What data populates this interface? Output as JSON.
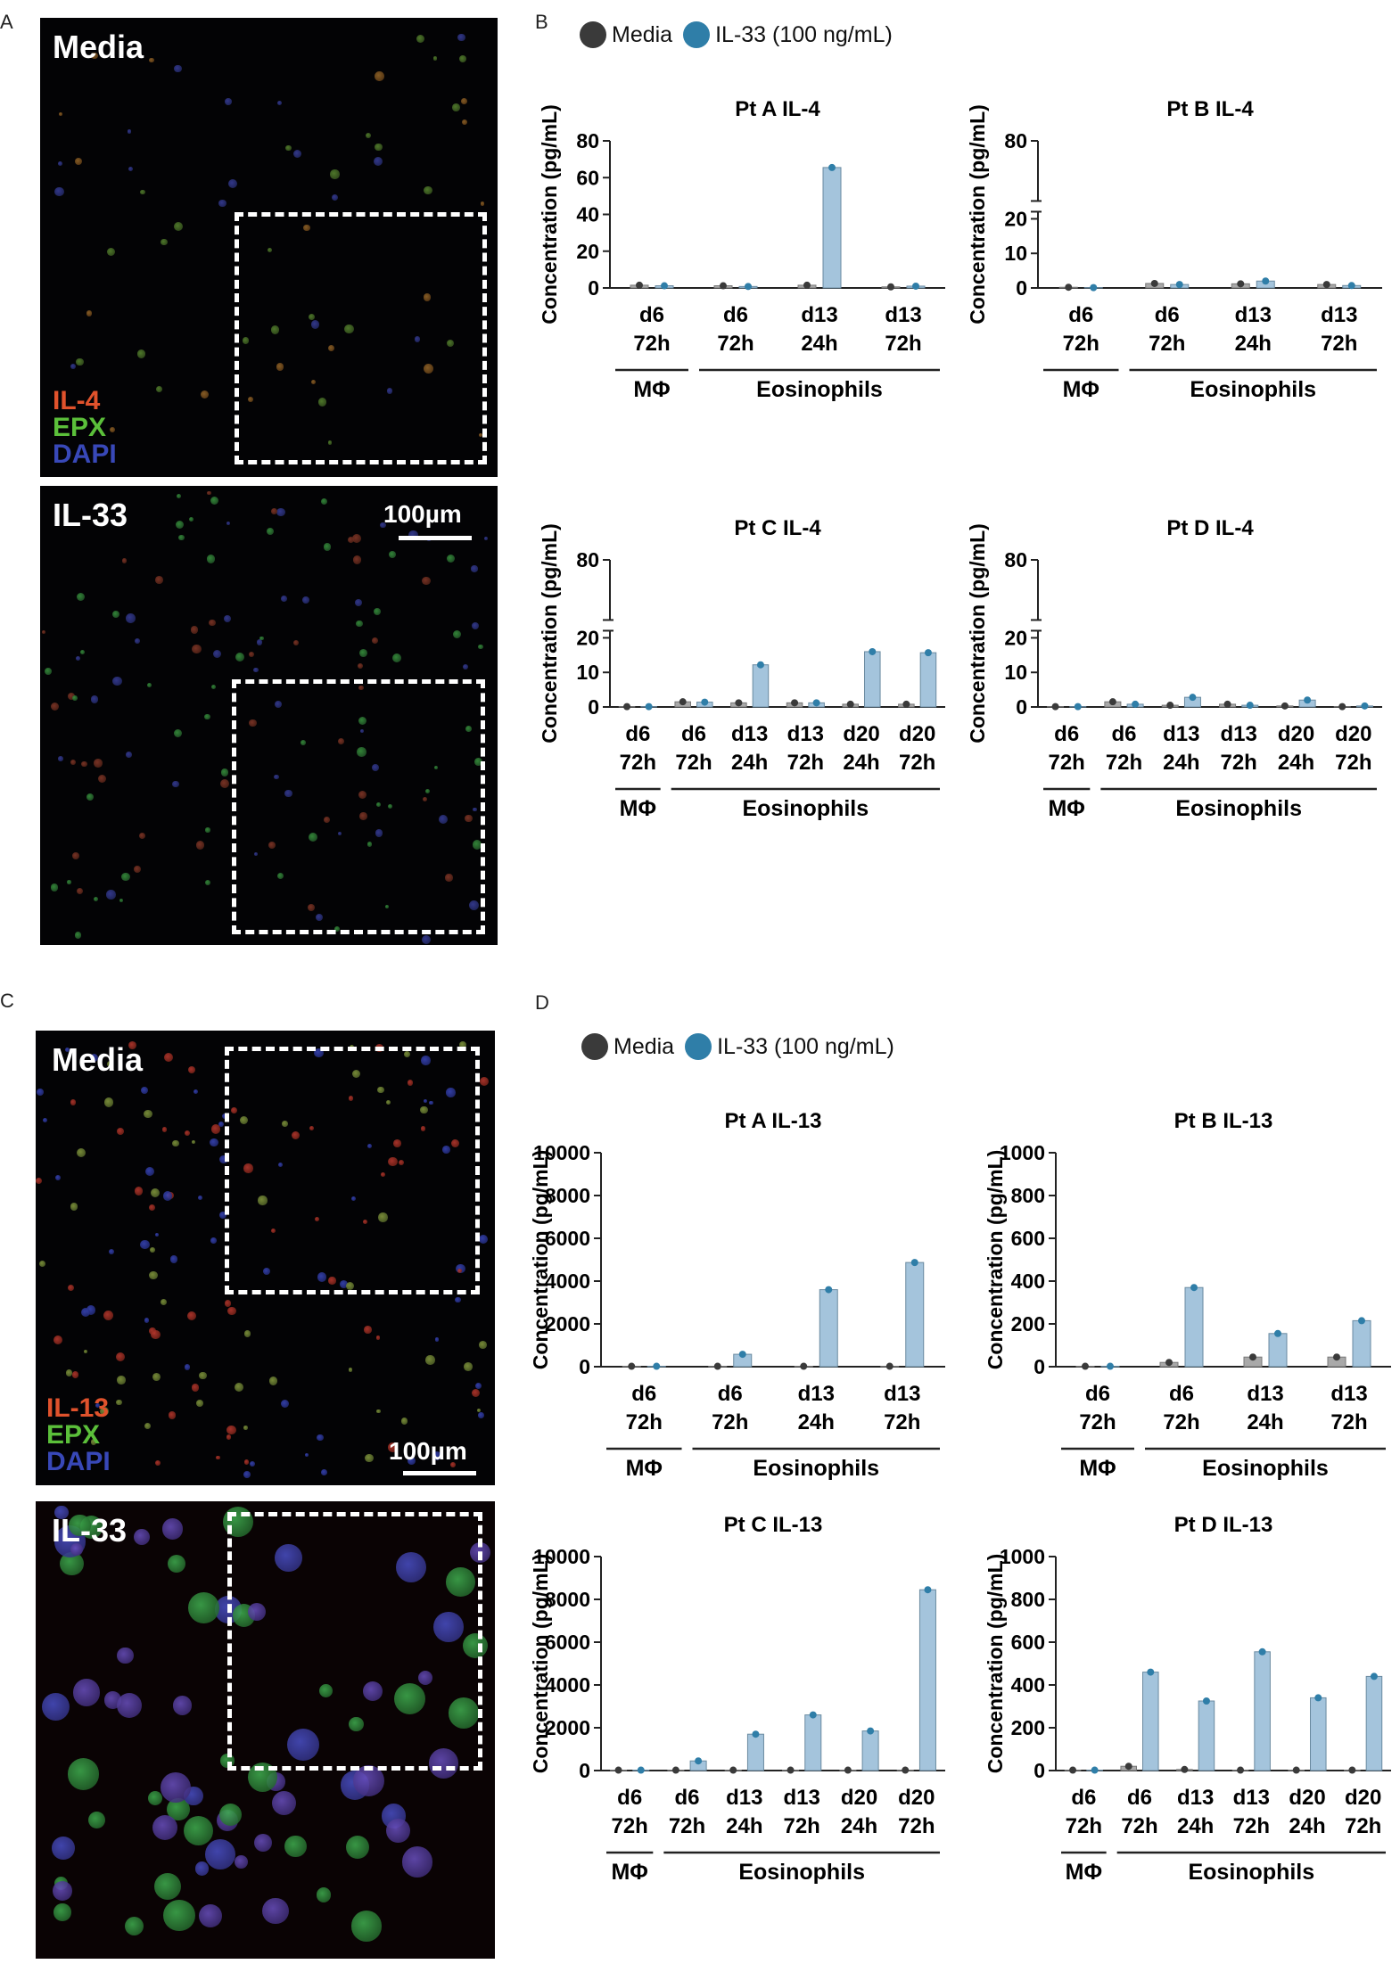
{
  "panels": {
    "A": "A",
    "B": "B",
    "C": "C",
    "D": "D"
  },
  "panel_a": {
    "top_label": "Media",
    "bottom_label": "IL-33",
    "stains": [
      {
        "text": "IL-4",
        "color": "#e0522c"
      },
      {
        "text": "EPX",
        "color": "#5bbf3a"
      },
      {
        "text": "DAPI",
        "color": "#3848b8"
      }
    ],
    "scale": "100µm"
  },
  "panel_c": {
    "top_label": "Media",
    "bottom_label": "IL-33",
    "stains": [
      {
        "text": "IL-13",
        "color": "#e0522c"
      },
      {
        "text": "EPX",
        "color": "#5bbf3a"
      },
      {
        "text": "DAPI",
        "color": "#3848b8"
      }
    ],
    "scale": "100µm"
  },
  "legend": {
    "items": [
      {
        "label": "Media",
        "color": "#3a3a3a"
      },
      {
        "label": "IL-33 (100 ng/mL)",
        "color": "#2f7ea8"
      }
    ]
  },
  "colors": {
    "media_bar": "#a9a9a9",
    "media_dot": "#3a3a3a",
    "il33_bar": "#a4c4dc",
    "il33_dot": "#2f7ea8"
  },
  "chart_data": [
    {
      "id": "ptA_il4",
      "type": "bar",
      "title": "Pt A IL-4",
      "ylabel": "Concentration (pg/mL)",
      "yticks": [
        0,
        20,
        40,
        60,
        80
      ],
      "ylim": [
        0,
        80
      ],
      "axis_break": false,
      "categories": [
        [
          "d6",
          "72h"
        ],
        [
          "d6",
          "72h"
        ],
        [
          "d13",
          "24h"
        ],
        [
          "d13",
          "72h"
        ]
      ],
      "groups": [
        {
          "label": "MΦ",
          "span": [
            0,
            0
          ]
        },
        {
          "label": "Eosinophils",
          "span": [
            1,
            3
          ]
        }
      ],
      "series": [
        {
          "name": "Media",
          "values": [
            1.5,
            1.2,
            1.5,
            0.6
          ]
        },
        {
          "name": "IL-33 (100 ng/mL)",
          "values": [
            1.2,
            0.8,
            65.5,
            1.0
          ]
        }
      ]
    },
    {
      "id": "ptB_il4",
      "type": "bar",
      "title": "Pt B IL-4",
      "ylabel": "Concentration (pg/mL)",
      "yticks": [
        0,
        10,
        20,
        80
      ],
      "ylim": [
        0,
        80
      ],
      "axis_break": true,
      "categories": [
        [
          "d6",
          "72h"
        ],
        [
          "d6",
          "72h"
        ],
        [
          "d13",
          "24h"
        ],
        [
          "d13",
          "72h"
        ]
      ],
      "groups": [
        {
          "label": "MΦ",
          "span": [
            0,
            0
          ]
        },
        {
          "label": "Eosinophils",
          "span": [
            1,
            3
          ]
        }
      ],
      "series": [
        {
          "name": "Media",
          "values": [
            0.2,
            1.3,
            1.2,
            1.0
          ]
        },
        {
          "name": "IL-33 (100 ng/mL)",
          "values": [
            0.1,
            1.0,
            2.0,
            0.7
          ]
        }
      ]
    },
    {
      "id": "ptC_il4",
      "type": "bar",
      "title": "Pt C IL-4",
      "ylabel": "Concentration (pg/mL)",
      "yticks": [
        0,
        10,
        20,
        80
      ],
      "ylim": [
        0,
        80
      ],
      "axis_break": true,
      "categories": [
        [
          "d6",
          "72h"
        ],
        [
          "d6",
          "72h"
        ],
        [
          "d13",
          "24h"
        ],
        [
          "d13",
          "72h"
        ],
        [
          "d20",
          "24h"
        ],
        [
          "d20",
          "72h"
        ]
      ],
      "groups": [
        {
          "label": "MΦ",
          "span": [
            0,
            0
          ]
        },
        {
          "label": "Eosinophils",
          "span": [
            1,
            5
          ]
        }
      ],
      "series": [
        {
          "name": "Media",
          "values": [
            0.1,
            1.5,
            1.2,
            1.2,
            0.8,
            0.8
          ]
        },
        {
          "name": "IL-33 (100 ng/mL)",
          "values": [
            0.1,
            1.4,
            12.2,
            1.2,
            16.0,
            15.7
          ]
        }
      ]
    },
    {
      "id": "ptD_il4",
      "type": "bar",
      "title": "Pt D IL-4",
      "ylabel": "Concentration (pg/mL)",
      "yticks": [
        0,
        10,
        20,
        80
      ],
      "ylim": [
        0,
        80
      ],
      "axis_break": true,
      "categories": [
        [
          "d6",
          "72h"
        ],
        [
          "d6",
          "72h"
        ],
        [
          "d13",
          "24h"
        ],
        [
          "d13",
          "72h"
        ],
        [
          "d20",
          "24h"
        ],
        [
          "d20",
          "72h"
        ]
      ],
      "groups": [
        {
          "label": "MΦ",
          "span": [
            0,
            0
          ]
        },
        {
          "label": "Eosinophils",
          "span": [
            1,
            5
          ]
        }
      ],
      "series": [
        {
          "name": "Media",
          "values": [
            0.1,
            1.5,
            0.5,
            0.8,
            0.3,
            0.1
          ]
        },
        {
          "name": "IL-33 (100 ng/mL)",
          "values": [
            0.1,
            0.8,
            2.8,
            0.5,
            2.0,
            0.3
          ]
        }
      ]
    },
    {
      "id": "ptA_il13",
      "type": "bar",
      "title": "Pt A IL-13",
      "ylabel": "Concentration (pg/mL)",
      "yticks": [
        0,
        2000,
        4000,
        6000,
        8000,
        10000
      ],
      "ylim": [
        0,
        10000
      ],
      "axis_break": false,
      "categories": [
        [
          "d6",
          "72h"
        ],
        [
          "d6",
          "72h"
        ],
        [
          "d13",
          "24h"
        ],
        [
          "d13",
          "72h"
        ]
      ],
      "groups": [
        {
          "label": "MΦ",
          "span": [
            0,
            0
          ]
        },
        {
          "label": "Eosinophils",
          "span": [
            1,
            3
          ]
        }
      ],
      "series": [
        {
          "name": "Media",
          "values": [
            20,
            20,
            20,
            20
          ]
        },
        {
          "name": "IL-33 (100 ng/mL)",
          "values": [
            20,
            580,
            3600,
            4870
          ]
        }
      ]
    },
    {
      "id": "ptB_il13",
      "type": "bar",
      "title": "Pt B IL-13",
      "ylabel": "Concentration (pg/mL)",
      "yticks": [
        0,
        200,
        400,
        600,
        800,
        1000
      ],
      "ylim": [
        0,
        1000
      ],
      "axis_break": false,
      "categories": [
        [
          "d6",
          "72h"
        ],
        [
          "d6",
          "72h"
        ],
        [
          "d13",
          "24h"
        ],
        [
          "d13",
          "72h"
        ]
      ],
      "groups": [
        {
          "label": "MΦ",
          "span": [
            0,
            0
          ]
        },
        {
          "label": "Eosinophils",
          "span": [
            1,
            3
          ]
        }
      ],
      "series": [
        {
          "name": "Media",
          "values": [
            2,
            20,
            45,
            45
          ]
        },
        {
          "name": "IL-33 (100 ng/mL)",
          "values": [
            2,
            370,
            155,
            215
          ]
        }
      ]
    },
    {
      "id": "ptC_il13",
      "type": "bar",
      "title": "Pt C IL-13",
      "ylabel": "Concentration (pg/mL)",
      "yticks": [
        0,
        2000,
        4000,
        6000,
        8000,
        10000
      ],
      "ylim": [
        0,
        10000
      ],
      "axis_break": false,
      "categories": [
        [
          "d6",
          "72h"
        ],
        [
          "d6",
          "72h"
        ],
        [
          "d13",
          "24h"
        ],
        [
          "d13",
          "72h"
        ],
        [
          "d20",
          "24h"
        ],
        [
          "d20",
          "72h"
        ]
      ],
      "groups": [
        {
          "label": "MΦ",
          "span": [
            0,
            0
          ]
        },
        {
          "label": "Eosinophils",
          "span": [
            1,
            5
          ]
        }
      ],
      "series": [
        {
          "name": "Media",
          "values": [
            20,
            20,
            20,
            20,
            20,
            20
          ]
        },
        {
          "name": "IL-33 (100 ng/mL)",
          "values": [
            20,
            450,
            1700,
            2600,
            1850,
            8450
          ]
        }
      ]
    },
    {
      "id": "ptD_il13",
      "type": "bar",
      "title": "Pt D IL-13",
      "ylabel": "Concentration (pg/mL)",
      "yticks": [
        0,
        200,
        400,
        600,
        800,
        1000
      ],
      "ylim": [
        0,
        1000
      ],
      "axis_break": false,
      "categories": [
        [
          "d6",
          "72h"
        ],
        [
          "d6",
          "72h"
        ],
        [
          "d13",
          "24h"
        ],
        [
          "d13",
          "72h"
        ],
        [
          "d20",
          "24h"
        ],
        [
          "d20",
          "72h"
        ]
      ],
      "groups": [
        {
          "label": "MΦ",
          "span": [
            0,
            0
          ]
        },
        {
          "label": "Eosinophils",
          "span": [
            1,
            5
          ]
        }
      ],
      "series": [
        {
          "name": "Media",
          "values": [
            2,
            20,
            5,
            2,
            2,
            2
          ]
        },
        {
          "name": "IL-33 (100 ng/mL)",
          "values": [
            2,
            460,
            325,
            555,
            340,
            440
          ]
        }
      ]
    }
  ]
}
